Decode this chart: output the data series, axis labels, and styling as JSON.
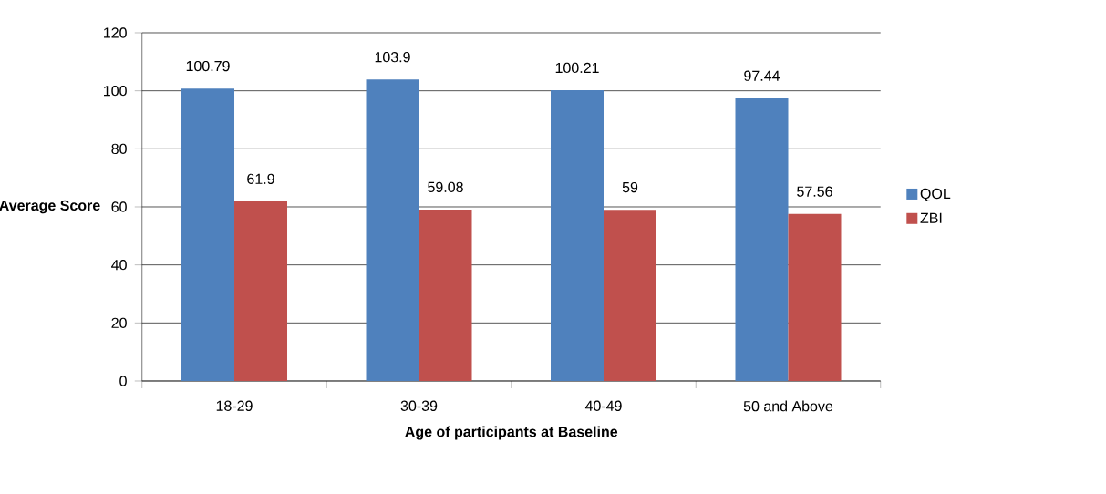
{
  "chart_data": {
    "type": "bar",
    "xlabel": "Age of participants at Baseline",
    "ylabel": "Average Score",
    "categories": [
      "18-29",
      "30-39",
      "40-49",
      "50 and Above"
    ],
    "series": [
      {
        "name": "QOL",
        "color": "#4f81bd",
        "values": [
          100.79,
          103.9,
          100.21,
          97.44
        ]
      },
      {
        "name": "ZBI",
        "color": "#c0504d",
        "values": [
          61.9,
          59.08,
          59,
          57.56
        ]
      }
    ],
    "ylim": [
      0,
      120
    ],
    "yticks": [
      0,
      20,
      40,
      60,
      80,
      100,
      120
    ],
    "grid": "y",
    "legend": "right",
    "data_labels": true
  }
}
